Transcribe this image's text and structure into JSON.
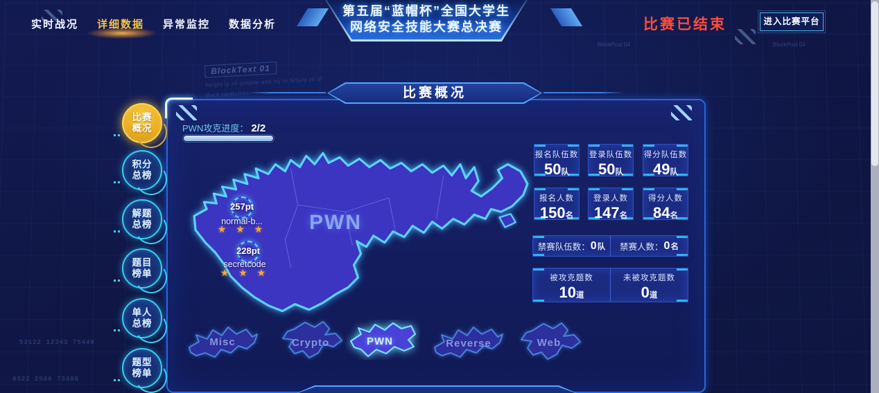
{
  "nav": {
    "items": [
      {
        "label": "实时战况"
      },
      {
        "label": "详细数据"
      },
      {
        "label": "异常监控"
      },
      {
        "label": "数据分析"
      }
    ]
  },
  "title": {
    "line1": "第五届“蓝帽杯”全国大学生",
    "line2": "网络安全技能大赛总决赛"
  },
  "header_right": {
    "status_text": "比赛已结束",
    "enter_button": "进入比赛平台"
  },
  "sidebar": {
    "items": [
      {
        "line1": "比赛",
        "line2": "概况",
        "active": true
      },
      {
        "line1": "积分",
        "line2": "总榜",
        "active": false
      },
      {
        "line1": "解题",
        "line2": "总榜",
        "active": false
      },
      {
        "line1": "题目",
        "line2": "榜单",
        "active": false
      },
      {
        "line1": "单人",
        "line2": "总榜",
        "active": false
      },
      {
        "line1": "题型",
        "line2": "榜单",
        "active": false
      }
    ]
  },
  "panel": {
    "section_header": "比赛概况",
    "progress_label": "PWN攻克进度：",
    "progress_value": "2/2",
    "progress_percent": 100,
    "map_region_label": "PWN",
    "markers": [
      {
        "points": "257pt",
        "team": "normal-b...",
        "stars": "★ ★ ★"
      },
      {
        "points": "228pt",
        "team": "secretcode",
        "stars": "★ ★ ★"
      }
    ],
    "thumbs": [
      {
        "label": "Misc",
        "active": false
      },
      {
        "label": "Crypto",
        "active": false
      },
      {
        "label": "PWN",
        "active": true
      },
      {
        "label": "Reverse",
        "active": false
      },
      {
        "label": "Web",
        "active": false
      }
    ]
  },
  "stats": {
    "row1": [
      {
        "label": "报名队伍数",
        "value": "50",
        "unit": "队"
      },
      {
        "label": "登录队伍数",
        "value": "50",
        "unit": "队"
      },
      {
        "label": "得分队伍数",
        "value": "49",
        "unit": "队"
      }
    ],
    "row2": [
      {
        "label": "报名人数",
        "value": "150",
        "unit": "名"
      },
      {
        "label": "登录人数",
        "value": "147",
        "unit": "名"
      },
      {
        "label": "得分人数",
        "value": "84",
        "unit": "名"
      }
    ],
    "row3": [
      {
        "label": "禁赛队伍数：",
        "value": "0",
        "unit": "队"
      },
      {
        "label": "禁赛人数：",
        "value": "0",
        "unit": "名"
      }
    ],
    "row4": [
      {
        "label": "被攻克题数",
        "value": "10",
        "unit": "道"
      },
      {
        "label": "未被攻克题数",
        "value": "0",
        "unit": "道"
      }
    ]
  },
  "decor": {
    "block_title": "BlockText 01",
    "block_body1": "height ip all puopwi and try to Sifjuly zli of",
    "block_body2": "thwX nwdtctIVn",
    "code_left1": "53122 12343 75448",
    "code_left2": "0322 2506 73488",
    "tag1": "BlockPost 04",
    "tag2": "BlockPost 04"
  },
  "colors": {
    "accent_gold": "#f5c341",
    "accent_cyan": "#35d2f2",
    "status_red": "#ff4b3d",
    "map_fill": "#3c35c2",
    "map_stroke": "#5fd4ff",
    "star_gold": "#f2a93b"
  }
}
